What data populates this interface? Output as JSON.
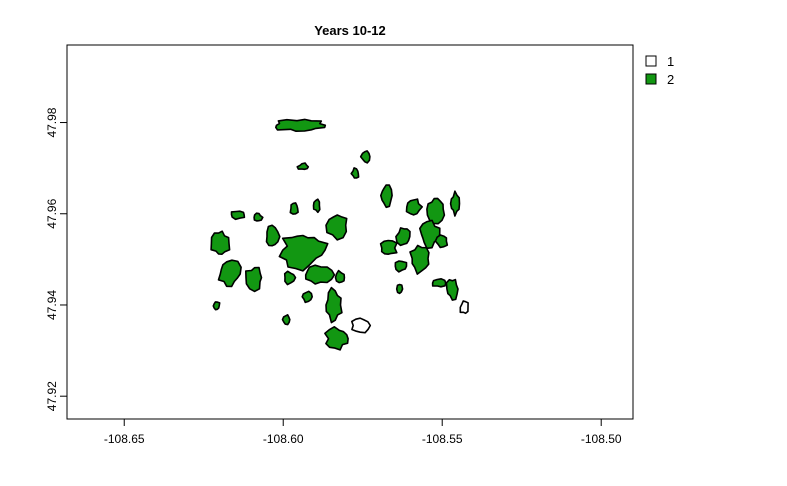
{
  "chart_data": {
    "type": "map",
    "title": "Years 10-12",
    "xlim": [
      -108.668,
      -108.49
    ],
    "ylim": [
      47.915,
      47.997
    ],
    "x_ticks": [
      -108.65,
      -108.6,
      -108.55,
      -108.5
    ],
    "x_tick_labels": [
      "-108.65",
      "-108.60",
      "-108.55",
      "-108.50"
    ],
    "y_ticks": [
      47.92,
      47.94,
      47.96,
      47.98
    ],
    "y_tick_labels": [
      "47.92",
      "47.94",
      "47.96",
      "47.98"
    ],
    "legend": {
      "placement": "top-right",
      "entries": [
        {
          "label": "1",
          "color": "#ffffff"
        },
        {
          "label": "2",
          "color": "#129712"
        }
      ]
    },
    "colors": {
      "class_1": "#ffffff",
      "class_2": "#129712",
      "outline": "#000000"
    },
    "patches": [
      {
        "class": 2,
        "lon": -108.5946,
        "lat": 47.9794,
        "w": 0.018,
        "h": 0.003,
        "n": 18
      },
      {
        "class": 2,
        "lon": -108.5937,
        "lat": 47.9703,
        "w": 0.0035,
        "h": 0.0016,
        "n": 10
      },
      {
        "class": 2,
        "lon": -108.574,
        "lat": 47.9725,
        "w": 0.003,
        "h": 0.003,
        "n": 10
      },
      {
        "class": 2,
        "lon": -108.5773,
        "lat": 47.9688,
        "w": 0.0025,
        "h": 0.0025,
        "n": 10
      },
      {
        "class": 2,
        "lon": -108.5676,
        "lat": 47.964,
        "w": 0.004,
        "h": 0.0055,
        "n": 12
      },
      {
        "class": 2,
        "lon": -108.559,
        "lat": 47.9615,
        "w": 0.005,
        "h": 0.004,
        "n": 12
      },
      {
        "class": 2,
        "lon": -108.552,
        "lat": 47.961,
        "w": 0.006,
        "h": 0.006,
        "n": 14
      },
      {
        "class": 2,
        "lon": -108.546,
        "lat": 47.9622,
        "w": 0.003,
        "h": 0.005,
        "n": 12
      },
      {
        "class": 2,
        "lon": -108.554,
        "lat": 47.9555,
        "w": 0.007,
        "h": 0.006,
        "n": 14
      },
      {
        "class": 2,
        "lon": -108.562,
        "lat": 47.955,
        "w": 0.005,
        "h": 0.005,
        "n": 12
      },
      {
        "class": 2,
        "lon": -108.557,
        "lat": 47.9502,
        "w": 0.0075,
        "h": 0.007,
        "n": 14
      },
      {
        "class": 2,
        "lon": -108.55,
        "lat": 47.954,
        "w": 0.004,
        "h": 0.003,
        "n": 10
      },
      {
        "class": 2,
        "lon": -108.567,
        "lat": 47.9525,
        "w": 0.006,
        "h": 0.004,
        "n": 12
      },
      {
        "class": 2,
        "lon": -108.563,
        "lat": 47.9485,
        "w": 0.004,
        "h": 0.0025,
        "n": 10
      },
      {
        "class": 2,
        "lon": -108.5634,
        "lat": 47.9435,
        "w": 0.0018,
        "h": 0.0022,
        "n": 8
      },
      {
        "class": 2,
        "lon": -108.551,
        "lat": 47.9448,
        "w": 0.0045,
        "h": 0.002,
        "n": 10
      },
      {
        "class": 2,
        "lon": -108.5468,
        "lat": 47.9435,
        "w": 0.004,
        "h": 0.005,
        "n": 12
      },
      {
        "class": 1,
        "lon": -108.543,
        "lat": 47.9395,
        "w": 0.003,
        "h": 0.0035,
        "n": 10
      },
      {
        "class": 2,
        "lon": -108.6142,
        "lat": 47.9598,
        "w": 0.005,
        "h": 0.002,
        "n": 10
      },
      {
        "class": 2,
        "lon": -108.608,
        "lat": 47.9592,
        "w": 0.003,
        "h": 0.0022,
        "n": 10
      },
      {
        "class": 2,
        "lon": -108.5965,
        "lat": 47.9612,
        "w": 0.003,
        "h": 0.003,
        "n": 10
      },
      {
        "class": 2,
        "lon": -108.5895,
        "lat": 47.9618,
        "w": 0.0025,
        "h": 0.003,
        "n": 10
      },
      {
        "class": 2,
        "lon": -108.583,
        "lat": 47.9575,
        "w": 0.007,
        "h": 0.006,
        "n": 12
      },
      {
        "class": 2,
        "lon": -108.6198,
        "lat": 47.9535,
        "w": 0.006,
        "h": 0.006,
        "n": 14
      },
      {
        "class": 2,
        "lon": -108.6035,
        "lat": 47.955,
        "w": 0.0045,
        "h": 0.005,
        "n": 12
      },
      {
        "class": 2,
        "lon": -108.5938,
        "lat": 47.952,
        "w": 0.015,
        "h": 0.0085,
        "n": 20
      },
      {
        "class": 2,
        "lon": -108.589,
        "lat": 47.9466,
        "w": 0.01,
        "h": 0.0048,
        "n": 14
      },
      {
        "class": 2,
        "lon": -108.617,
        "lat": 47.9468,
        "w": 0.008,
        "h": 0.0065,
        "n": 14
      },
      {
        "class": 2,
        "lon": -108.609,
        "lat": 47.946,
        "w": 0.006,
        "h": 0.0055,
        "n": 12
      },
      {
        "class": 2,
        "lon": -108.598,
        "lat": 47.946,
        "w": 0.004,
        "h": 0.003,
        "n": 10
      },
      {
        "class": 2,
        "lon": -108.582,
        "lat": 47.946,
        "w": 0.0035,
        "h": 0.003,
        "n": 10
      },
      {
        "class": 2,
        "lon": -108.621,
        "lat": 47.9398,
        "w": 0.0025,
        "h": 0.0022,
        "n": 10
      },
      {
        "class": 2,
        "lon": -108.599,
        "lat": 47.9368,
        "w": 0.0025,
        "h": 0.0022,
        "n": 10
      },
      {
        "class": 2,
        "lon": -108.5925,
        "lat": 47.9418,
        "w": 0.0035,
        "h": 0.0025,
        "n": 10
      },
      {
        "class": 2,
        "lon": -108.5842,
        "lat": 47.94,
        "w": 0.006,
        "h": 0.008,
        "n": 14
      },
      {
        "class": 2,
        "lon": -108.583,
        "lat": 47.9326,
        "w": 0.008,
        "h": 0.005,
        "n": 14
      },
      {
        "class": 1,
        "lon": -108.5758,
        "lat": 47.9355,
        "w": 0.006,
        "h": 0.0035,
        "n": 12
      }
    ]
  }
}
